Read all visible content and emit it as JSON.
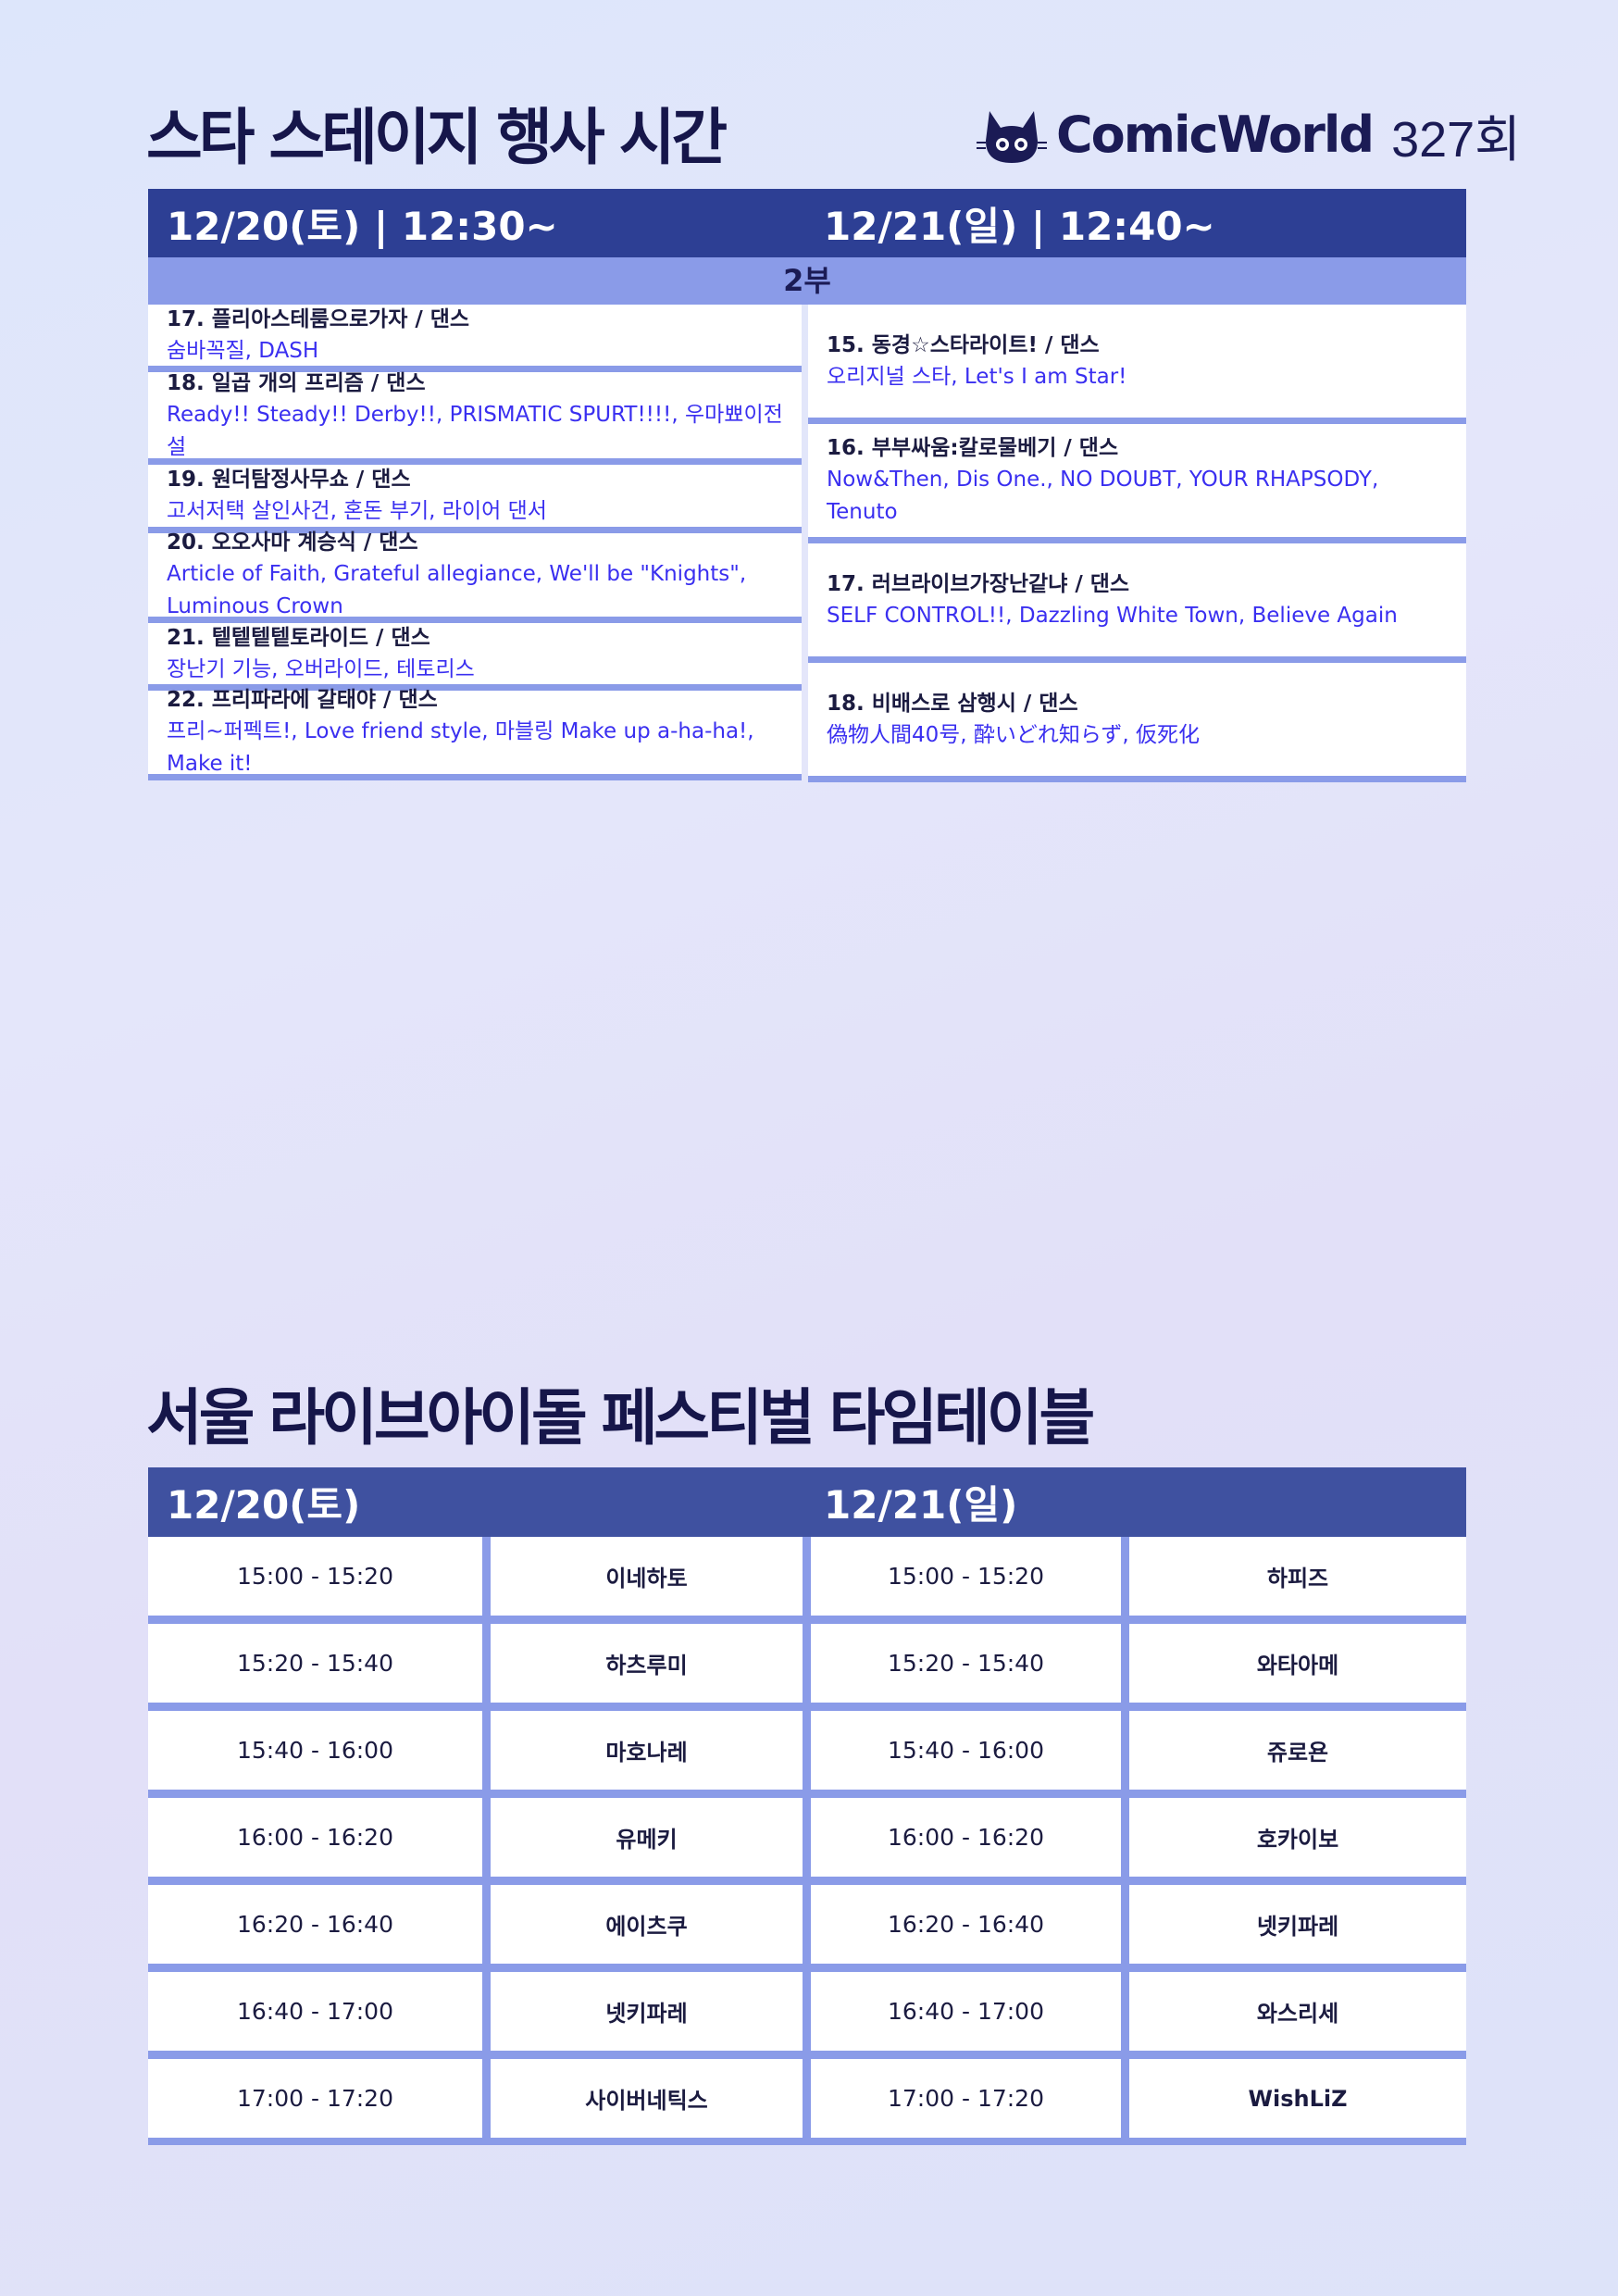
{
  "stage": {
    "title": "스타 스테이지 행사 시간",
    "logo": {
      "brand": "ComicWorld",
      "edition": "327회"
    },
    "day1_header": "12/20(토) | 12:30~",
    "day2_header": "12/21(일) | 12:40~",
    "part_label": "2부",
    "day1": [
      {
        "title": "17. 플리아스테룸으로가자 / 댄스",
        "songs": "숨바꼭질, DASH"
      },
      {
        "title": "18. 일곱 개의 프리즘  / 댄스",
        "songs": "Ready!! Steady!! Derby!!,  PRISMATIC SPURT!!!!, 우마뾰이전설"
      },
      {
        "title": "19. 원더탐정사무쇼 / 댄스",
        "songs": "고서저택 살인사건, 혼돈 부기, 라이어 댄서"
      },
      {
        "title": "20. 오오사마 계승식 / 댄스",
        "songs": "Article of Faith, Grateful allegiance, We'll be \"Knights\", Luminous Crown"
      },
      {
        "title": "21. 텥텥텥텥토라이드 / 댄스",
        "songs": "장난기 기능, 오버라이드, 테토리스"
      },
      {
        "title": "22. 프리파라에 갈태야 / 댄스",
        "songs": "프리~퍼펙트!, Love friend style, 마블링 Make up a-ha-ha!, Make it!"
      }
    ],
    "day2": [
      {
        "title": "15. 동경☆스타라이트! / 댄스",
        "songs": "오리지널 스타, Let's I am Star!"
      },
      {
        "title": "16. 부부싸움:칼로물베기 / 댄스",
        "songs": "Now&Then, Dis One., NO DOUBT, YOUR RHAPSODY, Tenuto"
      },
      {
        "title": "17. 러브라이브가장난같냐 / 댄스",
        "songs": "SELF CONTROL!!, Dazzling White Town, Believe Again"
      },
      {
        "title": "18. 비배스로 삼행시 / 댄스",
        "songs": "偽物人間40号, 酔いどれ知らず, 仮死化"
      }
    ]
  },
  "festival": {
    "title": "서울 라이브아이돌 페스티벌 타임테이블",
    "day1_header": "12/20(토)",
    "day2_header": "12/21(일)",
    "rows": [
      {
        "t1": "15:00 - 15:20",
        "n1": "이네하토",
        "t2": "15:00 - 15:20",
        "n2": "하피즈"
      },
      {
        "t1": "15:20 - 15:40",
        "n1": "하츠루미",
        "t2": "15:20 - 15:40",
        "n2": "와타아메"
      },
      {
        "t1": "15:40 - 16:00",
        "n1": "마호나레",
        "t2": "15:40 - 16:00",
        "n2": "쥬로욘"
      },
      {
        "t1": "16:00 - 16:20",
        "n1": "유메키",
        "t2": "16:00 - 16:20",
        "n2": "호카이보"
      },
      {
        "t1": "16:20 - 16:40",
        "n1": "에이츠쿠",
        "t2": "16:20 - 16:40",
        "n2": "넷키파레"
      },
      {
        "t1": "16:40 - 17:00",
        "n1": "넷키파레",
        "t2": "16:40 - 17:00",
        "n2": "와스리세"
      },
      {
        "t1": "17:00 - 17:20",
        "n1": "사이버네틱스",
        "t2": "17:00 - 17:20",
        "n2": "WishLiZ"
      }
    ]
  },
  "colors": {
    "header1": "#2d3f94",
    "header2": "#3f51a0",
    "divider": "#8a9be8",
    "song_text": "#3a2ff0",
    "dark_text": "#1b1b40"
  }
}
